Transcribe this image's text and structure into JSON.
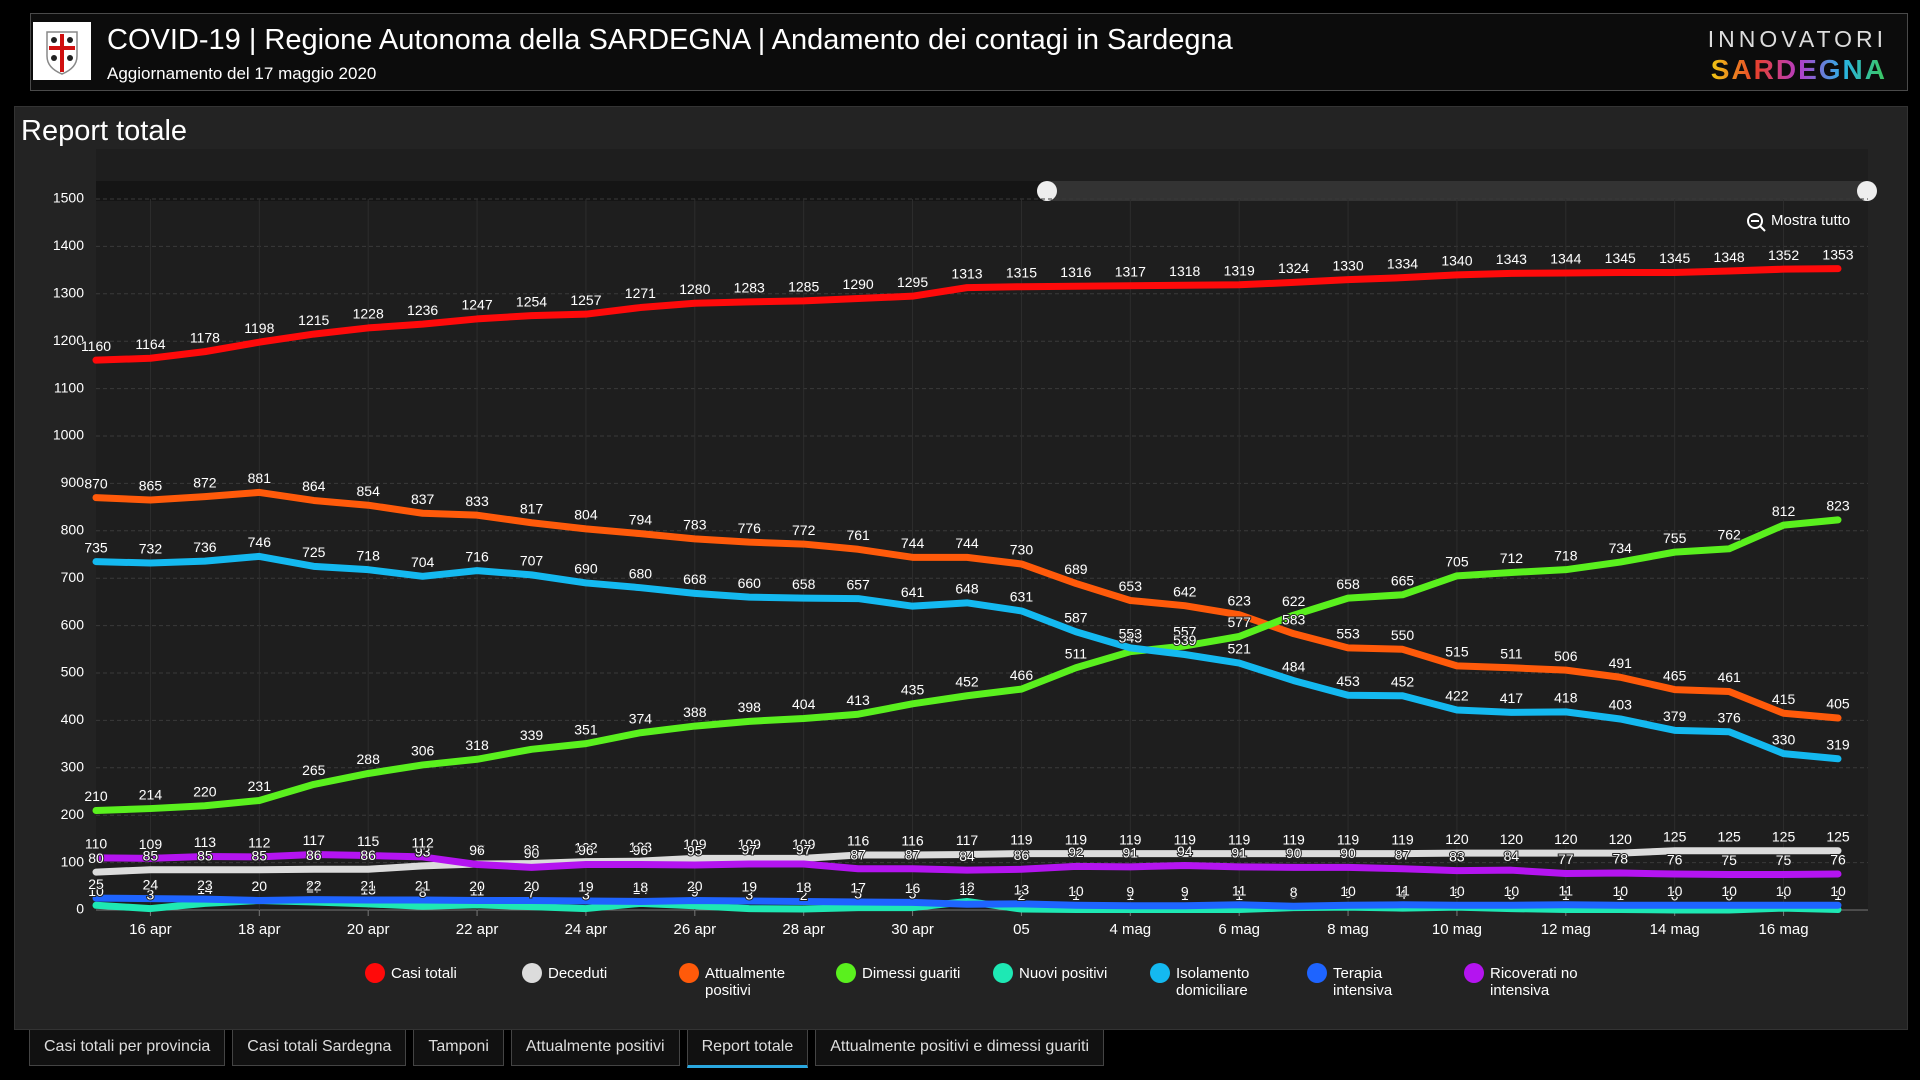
{
  "header": {
    "title": "COVID-19 | Regione Autonoma della SARDEGNA | Andamento dei contagi in Sardegna",
    "subtitle": "Aggiornamento del 17 maggio 2020",
    "brand_top": "INNOVATORI",
    "brand_bottom": "SARDEGNA"
  },
  "panel": {
    "title": "Report totale",
    "zoom_button": "Mostra tutto"
  },
  "tabs": [
    "Casi totali per provincia",
    "Casi totali Sardegna",
    "Tamponi",
    "Attualmente positivi",
    "Report totale",
    "Attualmente positivi e dimessi guariti"
  ],
  "active_tab": 4,
  "chart_data": {
    "type": "line",
    "categories": [
      null,
      "16 apr",
      null,
      "18 apr",
      null,
      "20 apr",
      null,
      "22 apr",
      null,
      "24 apr",
      null,
      "26 apr",
      null,
      "28 apr",
      null,
      "30 apr",
      null,
      "05",
      null,
      "4 mag",
      null,
      "6 mag",
      null,
      "8 mag",
      null,
      "10 mag",
      null,
      "12 mag",
      null,
      "14 mag",
      null,
      "16 mag",
      null
    ],
    "ylim": [
      0,
      1500
    ],
    "yticks": [
      0,
      100,
      200,
      300,
      400,
      500,
      600,
      700,
      800,
      900,
      1000,
      1100,
      1200,
      1300,
      1400,
      1500
    ],
    "grid": true,
    "series": [
      {
        "name": "Casi totali",
        "color": "#ff0a0a",
        "values": [
          1160,
          1164,
          1178,
          1198,
          1215,
          1228,
          1236,
          1247,
          1254,
          1257,
          1271,
          1280,
          1283,
          1285,
          1290,
          1295,
          1313,
          1315,
          1316,
          1317,
          1318,
          1319,
          1324,
          1330,
          1334,
          1340,
          1343,
          1344,
          1345,
          1345,
          1348,
          1352,
          1353
        ]
      },
      {
        "name": "Deceduti",
        "color": "#dcdcdc",
        "values": [
          80,
          85,
          85,
          85,
          86,
          86,
          93,
          97,
          98,
          102,
          103,
          109,
          109,
          109,
          116,
          116,
          117,
          119,
          119,
          119,
          119,
          119,
          119,
          119,
          119,
          120,
          120,
          120,
          120,
          125,
          125,
          125,
          125
        ]
      },
      {
        "name": "Attualmente positivi",
        "color": "#ff5a0a",
        "values": [
          870,
          865,
          872,
          881,
          864,
          854,
          837,
          833,
          817,
          804,
          794,
          783,
          776,
          772,
          761,
          744,
          744,
          730,
          689,
          653,
          642,
          623,
          583,
          553,
          550,
          515,
          511,
          506,
          491,
          465,
          461,
          415,
          405
        ]
      },
      {
        "name": "Dimessi guariti",
        "color": "#5af01e",
        "values": [
          210,
          214,
          220,
          231,
          265,
          288,
          306,
          318,
          339,
          351,
          374,
          388,
          398,
          404,
          413,
          435,
          452,
          466,
          511,
          545,
          557,
          577,
          622,
          658,
          665,
          705,
          712,
          718,
          734,
          755,
          762,
          812,
          823
        ]
      },
      {
        "name": "Nuovi positivi",
        "color": "#1ee8b4",
        "values": [
          10,
          3,
          14,
          20,
          17,
          13,
          8,
          11,
          7,
          3,
          14,
          9,
          3,
          2,
          5,
          5,
          18,
          2,
          1,
          1,
          1,
          1,
          5,
          6,
          4,
          6,
          3,
          1,
          1,
          0,
          0,
          4,
          1
        ]
      },
      {
        "name": "Isolamento domiciliare",
        "color": "#14b9f0",
        "values": [
          735,
          732,
          736,
          746,
          725,
          718,
          704,
          716,
          707,
          690,
          680,
          668,
          660,
          658,
          657,
          641,
          648,
          631,
          587,
          553,
          539,
          521,
          484,
          453,
          452,
          422,
          417,
          418,
          403,
          379,
          376,
          330,
          319
        ]
      },
      {
        "name": "Terapia intensiva",
        "color": "#1e64ff",
        "values": [
          25,
          24,
          23,
          20,
          22,
          21,
          21,
          20,
          20,
          19,
          18,
          20,
          19,
          18,
          17,
          16,
          12,
          13,
          10,
          9,
          9,
          11,
          8,
          10,
          11,
          10,
          10,
          11,
          10,
          10,
          10,
          10,
          10
        ]
      },
      {
        "name": "Ricoverati no intensiva",
        "color": "#b414f0",
        "values": [
          110,
          109,
          113,
          112,
          117,
          115,
          112,
          96,
          90,
          96,
          96,
          95,
          97,
          97,
          87,
          87,
          84,
          86,
          92,
          91,
          94,
          91,
          90,
          90,
          87,
          83,
          84,
          77,
          78,
          76,
          75,
          75,
          76
        ]
      }
    ]
  }
}
